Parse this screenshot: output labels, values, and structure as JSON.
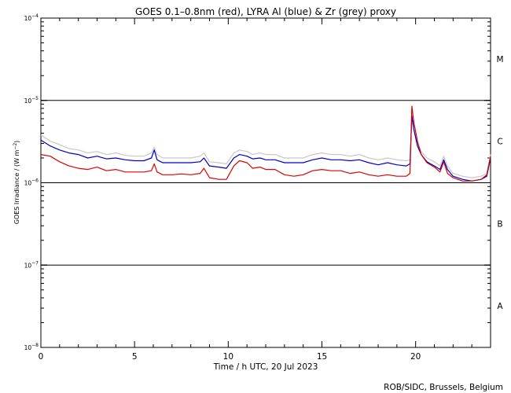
{
  "chart_data": {
    "type": "line",
    "title": "GOES 0.1–0.8nm (red), LYRA Al (blue) & Zr (grey) proxy",
    "xlabel": "Time / h UTC, 20 Jul 2023",
    "ylabel_base": "GOES Irradiance / (W m",
    "ylabel_sup": "−2",
    "ylabel_end": ")",
    "credit": "ROB/SIDC, Brussels, Belgium",
    "xlim": [
      0,
      24
    ],
    "x_ticks": [
      0,
      5,
      10,
      15,
      20
    ],
    "x_tick_labels": [
      "0",
      "5",
      "10",
      "15",
      "20"
    ],
    "y_scale": "log",
    "ylim": [
      1e-08,
      0.0001
    ],
    "y_ticks": [
      {
        "value": 1e-08,
        "base": "10",
        "exp": "−8"
      },
      {
        "value": 1e-07,
        "base": "10",
        "exp": "−7"
      },
      {
        "value": 1e-06,
        "base": "10",
        "exp": "−6"
      },
      {
        "value": 1e-05,
        "base": "10",
        "exp": "−5"
      },
      {
        "value": 0.0001,
        "base": "10",
        "exp": "−4"
      }
    ],
    "flare_class_levels": [
      1e-07,
      1e-06,
      1e-05
    ],
    "flare_classes": [
      {
        "label": "A",
        "value": 3.2e-08
      },
      {
        "label": "B",
        "value": 3.2e-07
      },
      {
        "label": "C",
        "value": 3.2e-06
      },
      {
        "label": "M",
        "value": 3.2e-05
      }
    ],
    "grid": false,
    "series": [
      {
        "color": "#c8c8c8",
        "x": [
          0,
          0.5,
          1,
          1.5,
          2,
          2.5,
          3,
          3.5,
          4,
          4.5,
          5,
          5.5,
          5.9,
          6.05,
          6.2,
          6.5,
          7,
          7.5,
          8,
          8.5,
          8.7,
          9,
          9.5,
          9.9,
          10.3,
          10.6,
          11,
          11.3,
          11.7,
          12,
          12.5,
          13,
          13.5,
          14,
          14.5,
          15,
          15.5,
          16,
          16.5,
          17,
          17.5,
          18,
          18.5,
          19,
          19.5,
          19.7,
          19.8,
          19.9,
          20.1,
          20.3,
          20.6,
          21,
          21.3,
          21.5,
          21.7,
          22,
          22.5,
          23,
          23.5,
          23.8,
          24
        ],
        "y": [
          3.8e-06,
          3.2e-06,
          2.9e-06,
          2.6e-06,
          2.5e-06,
          2.3e-06,
          2.4e-06,
          2.2e-06,
          2.3e-06,
          2.15e-06,
          2.1e-06,
          2.1e-06,
          2.3e-06,
          2.7e-06,
          2.2e-06,
          2e-06,
          2e-06,
          2e-06,
          2e-06,
          2.1e-06,
          2.3e-06,
          1.8e-06,
          1.75e-06,
          1.7e-06,
          2.3e-06,
          2.5e-06,
          2.4e-06,
          2.2e-06,
          2.3e-06,
          2.2e-06,
          2.2e-06,
          2e-06,
          2e-06,
          2e-06,
          2.2e-06,
          2.3e-06,
          2.2e-06,
          2.2e-06,
          2.1e-06,
          2.2e-06,
          2e-06,
          1.9e-06,
          2e-06,
          1.9e-06,
          1.85e-06,
          1.9e-06,
          6e-06,
          4.5e-06,
          3e-06,
          2.4e-06,
          2e-06,
          1.8e-06,
          1.6e-06,
          2.1e-06,
          1.6e-06,
          1.3e-06,
          1.2e-06,
          1.15e-06,
          1.2e-06,
          1.3e-06,
          2.2e-06
        ]
      },
      {
        "color": "#0000cc",
        "x": [
          0,
          0.5,
          1,
          1.5,
          2,
          2.5,
          3,
          3.5,
          4,
          4.5,
          5,
          5.5,
          5.9,
          6.05,
          6.2,
          6.5,
          7,
          7.5,
          8,
          8.5,
          8.7,
          9,
          9.5,
          9.9,
          10.3,
          10.6,
          11,
          11.3,
          11.7,
          12,
          12.5,
          13,
          13.5,
          14,
          14.5,
          15,
          15.5,
          16,
          16.5,
          17,
          17.5,
          18,
          18.5,
          19,
          19.5,
          19.7,
          19.8,
          19.9,
          20.1,
          20.3,
          20.6,
          21,
          21.3,
          21.5,
          21.7,
          22,
          22.5,
          23,
          23.5,
          23.8,
          24
        ],
        "y": [
          3.3e-06,
          2.8e-06,
          2.5e-06,
          2.3e-06,
          2.2e-06,
          2e-06,
          2.1e-06,
          1.95e-06,
          2e-06,
          1.9e-06,
          1.85e-06,
          1.85e-06,
          2e-06,
          2.5e-06,
          1.9e-06,
          1.75e-06,
          1.75e-06,
          1.75e-06,
          1.75e-06,
          1.8e-06,
          2e-06,
          1.6e-06,
          1.55e-06,
          1.5e-06,
          2e-06,
          2.2e-06,
          2.1e-06,
          1.95e-06,
          2e-06,
          1.9e-06,
          1.9e-06,
          1.75e-06,
          1.75e-06,
          1.75e-06,
          1.9e-06,
          2e-06,
          1.9e-06,
          1.9e-06,
          1.85e-06,
          1.9e-06,
          1.75e-06,
          1.65e-06,
          1.75e-06,
          1.65e-06,
          1.6e-06,
          1.7e-06,
          6.5e-06,
          4.5e-06,
          2.8e-06,
          2.2e-06,
          1.8e-06,
          1.6e-06,
          1.45e-06,
          1.9e-06,
          1.45e-06,
          1.2e-06,
          1.1e-06,
          1.05e-06,
          1.1e-06,
          1.2e-06,
          2e-06
        ]
      },
      {
        "color": "#e00000",
        "x": [
          0,
          0.5,
          1,
          1.5,
          2,
          2.5,
          3,
          3.5,
          4,
          4.5,
          5,
          5.5,
          5.9,
          6.05,
          6.2,
          6.5,
          7,
          7.5,
          8,
          8.5,
          8.7,
          9,
          9.5,
          9.9,
          10.3,
          10.6,
          11,
          11.3,
          11.7,
          12,
          12.5,
          13,
          13.5,
          14,
          14.5,
          15,
          15.5,
          16,
          16.5,
          17,
          17.5,
          18,
          18.5,
          19,
          19.5,
          19.7,
          19.8,
          19.9,
          20.1,
          20.3,
          20.6,
          21,
          21.3,
          21.5,
          21.7,
          22,
          22.5,
          23,
          23.5,
          23.8,
          24
        ],
        "y": [
          2.2e-06,
          2.1e-06,
          1.8e-06,
          1.6e-06,
          1.5e-06,
          1.45e-06,
          1.55e-06,
          1.4e-06,
          1.45e-06,
          1.35e-06,
          1.35e-06,
          1.35e-06,
          1.4e-06,
          1.7e-06,
          1.35e-06,
          1.25e-06,
          1.25e-06,
          1.28e-06,
          1.25e-06,
          1.3e-06,
          1.5e-06,
          1.15e-06,
          1.1e-06,
          1.1e-06,
          1.6e-06,
          1.85e-06,
          1.75e-06,
          1.5e-06,
          1.55e-06,
          1.45e-06,
          1.45e-06,
          1.25e-06,
          1.2e-06,
          1.25e-06,
          1.4e-06,
          1.45e-06,
          1.4e-06,
          1.4e-06,
          1.3e-06,
          1.35e-06,
          1.25e-06,
          1.2e-06,
          1.25e-06,
          1.2e-06,
          1.2e-06,
          1.3e-06,
          8.5e-06,
          5.5e-06,
          3.2e-06,
          2.2e-06,
          1.75e-06,
          1.55e-06,
          1.35e-06,
          1.8e-06,
          1.3e-06,
          1.15e-06,
          1.05e-06,
          1.05e-06,
          1.1e-06,
          1.25e-06,
          2.1e-06
        ]
      }
    ]
  }
}
